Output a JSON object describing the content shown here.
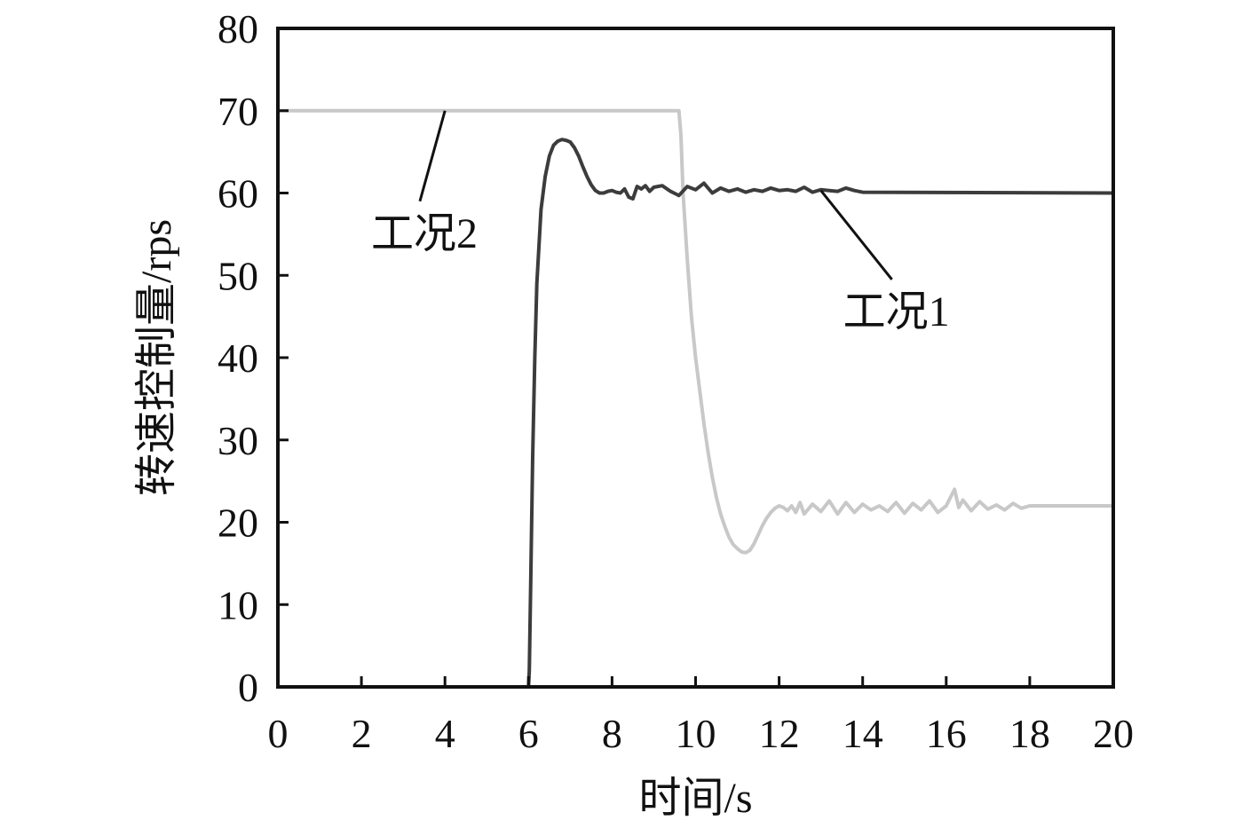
{
  "chart_data": {
    "type": "line",
    "title": "",
    "xlabel": "时间/s",
    "ylabel": "转速控制量/rps",
    "xlim": [
      0,
      20
    ],
    "ylim": [
      0,
      80
    ],
    "xticks": [
      0,
      2,
      4,
      6,
      8,
      10,
      12,
      14,
      16,
      18,
      20
    ],
    "yticks": [
      0,
      10,
      20,
      30,
      40,
      50,
      60,
      70,
      80
    ],
    "grid": false,
    "legend": "none",
    "series": [
      {
        "name": "工况1",
        "color": "#3c3c3c",
        "x": [
          0,
          6.0,
          6.02,
          6.05,
          6.1,
          6.15,
          6.2,
          6.3,
          6.4,
          6.5,
          6.6,
          6.7,
          6.8,
          6.9,
          7.0,
          7.1,
          7.2,
          7.3,
          7.4,
          7.5,
          7.6,
          7.7,
          7.8,
          7.9,
          8.0,
          8.1,
          8.2,
          8.3,
          8.4,
          8.5,
          8.6,
          8.7,
          8.8,
          8.9,
          9.0,
          9.2,
          9.4,
          9.6,
          9.8,
          10.0,
          10.2,
          10.4,
          10.6,
          10.8,
          11.0,
          11.2,
          11.4,
          11.6,
          11.8,
          12.0,
          12.2,
          12.4,
          12.6,
          12.8,
          13.0,
          13.2,
          13.4,
          13.6,
          13.8,
          14.0,
          20.0
        ],
        "y": [
          0,
          0,
          2,
          12,
          28,
          40,
          49,
          58,
          62,
          64.5,
          65.8,
          66.3,
          66.5,
          66.4,
          66.2,
          65.5,
          64.5,
          63.2,
          62,
          61,
          60.3,
          60.0,
          60.0,
          60.2,
          60.3,
          60.1,
          60.0,
          60.5,
          59.5,
          59.3,
          60.8,
          60.5,
          60.9,
          60.2,
          60.7,
          60.9,
          60.2,
          59.7,
          60.8,
          60.4,
          61.2,
          60.0,
          60.6,
          60.2,
          60.5,
          60.1,
          60.4,
          60.2,
          60.6,
          60.3,
          60.4,
          60.2,
          60.7,
          60.1,
          60.4,
          60.3,
          60.2,
          60.6,
          60.3,
          60.1,
          60.0
        ]
      },
      {
        "name": "工况2",
        "color": "#c8c8c8",
        "x": [
          0,
          9.6,
          9.65,
          9.7,
          9.8,
          9.9,
          10.0,
          10.1,
          10.2,
          10.3,
          10.4,
          10.5,
          10.6,
          10.7,
          10.8,
          10.9,
          11.0,
          11.1,
          11.2,
          11.3,
          11.4,
          11.5,
          11.6,
          11.7,
          11.8,
          11.9,
          12.0,
          12.1,
          12.2,
          12.3,
          12.4,
          12.5,
          12.6,
          12.8,
          13.0,
          13.2,
          13.4,
          13.6,
          13.8,
          14.0,
          14.2,
          14.4,
          14.6,
          14.8,
          15.0,
          15.2,
          15.4,
          15.6,
          15.8,
          16.0,
          16.2,
          16.3,
          16.4,
          16.6,
          16.8,
          17.0,
          17.2,
          17.4,
          17.6,
          17.8,
          18.0,
          20.0
        ],
        "y": [
          70,
          70,
          67,
          60,
          52,
          45,
          40,
          36,
          32,
          28.5,
          25.5,
          23,
          21,
          19.5,
          18.2,
          17.3,
          16.8,
          16.4,
          16.3,
          16.6,
          17.4,
          18.5,
          19.6,
          20.5,
          21.2,
          21.7,
          22.0,
          21.8,
          21.4,
          22.0,
          21.2,
          22.4,
          21.0,
          22.2,
          21.3,
          22.6,
          21.0,
          22.4,
          21.2,
          22.2,
          21.5,
          22.0,
          21.3,
          22.4,
          21.1,
          22.3,
          21.5,
          22.6,
          21.2,
          22.0,
          24.0,
          21.8,
          22.7,
          21.4,
          22.5,
          21.6,
          22.1,
          21.5,
          22.3,
          21.7,
          22.0,
          22.0
        ]
      }
    ],
    "annotations": [
      {
        "text": "工况1",
        "series": "工况1",
        "point": [
          13.0,
          60.3
        ],
        "label_at": [
          14.7,
          49.5
        ]
      },
      {
        "text": "工况2",
        "series": "工况2",
        "point": [
          4.0,
          70.0
        ],
        "label_at": [
          3.4,
          59.0
        ]
      }
    ]
  }
}
